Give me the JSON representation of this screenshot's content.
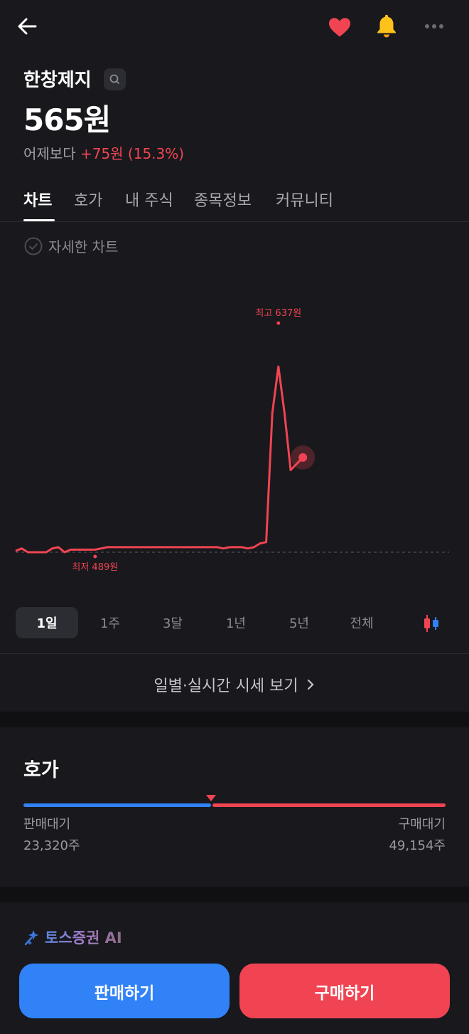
{
  "header": {
    "back_icon": "arrow-left-icon",
    "favorite_icon": "heart-icon",
    "alert_icon": "bell-icon",
    "more_icon": "more-horizontal-icon"
  },
  "stock": {
    "name": "한창제지",
    "price": "565원",
    "change_prefix": "어제보다",
    "change_value": "+75원 (15.3%)"
  },
  "tabs": [
    {
      "label": "차트",
      "active": true
    },
    {
      "label": "호가"
    },
    {
      "label": "내 주식"
    },
    {
      "label": "종목정보"
    },
    {
      "label": "커뮤니티"
    }
  ],
  "detail_chart_label": "자세한 차트",
  "colors": {
    "up": "#f04452",
    "down": "#3182f6",
    "background": "#18181d"
  },
  "chart_data": {
    "type": "line",
    "series": [
      {
        "values": [
          491,
          493,
          490,
          490,
          490,
          490,
          493,
          494,
          490,
          492,
          492,
          492,
          492,
          492,
          493,
          494,
          494,
          494,
          494,
          494,
          494,
          494,
          494,
          494,
          494,
          494,
          494,
          494,
          494,
          494,
          494,
          494,
          494,
          494,
          493,
          494,
          494,
          494,
          493,
          494,
          497,
          498,
          600,
          637,
          600,
          555,
          560,
          565
        ]
      }
    ],
    "reference_line": 490,
    "high_label": "최고 637원",
    "low_label": "최저 489원",
    "high": 637,
    "low": 489,
    "last": 565
  },
  "periods": [
    {
      "label": "1일",
      "active": true
    },
    {
      "label": "1주"
    },
    {
      "label": "3달"
    },
    {
      "label": "1년"
    },
    {
      "label": "5년"
    },
    {
      "label": "전체"
    }
  ],
  "candle_icon": "candlestick-icon",
  "daily_link": "일별·실시간 시세 보기",
  "hoga": {
    "title": "호가",
    "sell_label": "판매대기",
    "sell_qty": "23,320주",
    "buy_label": "구매대기",
    "buy_qty": "49,154주"
  },
  "ai_label": "토스증권 AI",
  "buttons": {
    "sell": "판매하기",
    "buy": "구매하기"
  }
}
